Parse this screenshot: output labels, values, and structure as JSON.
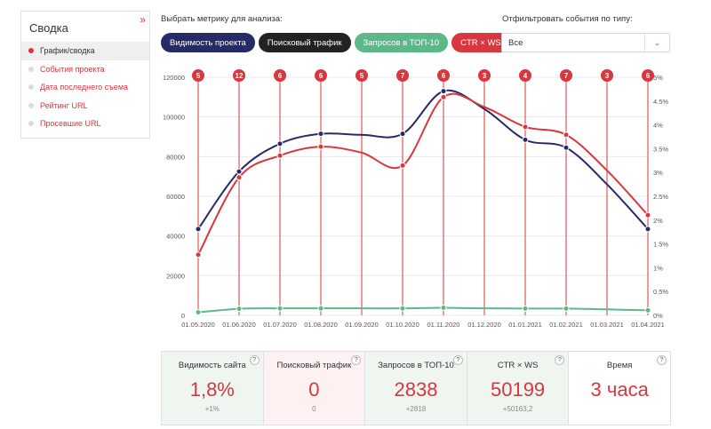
{
  "sidebar": {
    "title": "Сводка",
    "collapse_icon": "»",
    "items": [
      {
        "label": "График/сводка",
        "active": true
      },
      {
        "label": "События проекта",
        "active": false
      },
      {
        "label": "Дата последнего съема",
        "active": false
      },
      {
        "label": "Рейтинг URL",
        "active": false
      },
      {
        "label": "Просевшие URL",
        "active": false
      }
    ]
  },
  "controls": {
    "metric_label": "Выбрать метрику для анализа:",
    "filter_label": "Отфильтровать события по типу:",
    "help_icon": "?",
    "pills": [
      {
        "label": "Видимость проекта",
        "color": "#262a66"
      },
      {
        "label": "Поисковый трафик",
        "color": "#222222"
      },
      {
        "label": "Запросов в ТОП-10",
        "color": "#5cb888"
      },
      {
        "label": "CTR × WS",
        "color": "#d9363e"
      }
    ],
    "select_value": "Все",
    "select_arrow": "⌄"
  },
  "chart_data": {
    "type": "line",
    "x": [
      "01.05.2020",
      "01.06.2020",
      "01.07.2020",
      "01.08.2020",
      "01.09.2020",
      "01.10.2020",
      "01.11.2020",
      "01.12.2020",
      "01.01.2021",
      "01.02.2021",
      "01.03.2021",
      "01.04.2021"
    ],
    "y_left_ticks": [
      "0",
      "20000",
      "40000",
      "60000",
      "80000",
      "100000",
      "120000"
    ],
    "y_left_range": [
      0,
      120000
    ],
    "y_right_ticks": [
      "0%",
      "0.5%",
      "1%",
      "1.5%",
      "2%",
      "2.5%",
      "3%",
      "3.5%",
      "4%",
      "4.5%",
      "5%"
    ],
    "y_right_range": [
      0,
      5
    ],
    "events": [
      "5",
      "12",
      "6",
      "6",
      "5",
      "7",
      "6",
      "3",
      "4",
      "7",
      "3",
      "6"
    ],
    "series": [
      {
        "axis": "left",
        "color": "#262a66",
        "markers": [
          0,
          1,
          2,
          3,
          5,
          6,
          8,
          9,
          11
        ],
        "values": [
          43500,
          72500,
          86500,
          91500,
          91000,
          91500,
          113000,
          104000,
          88500,
          84500,
          66000,
          43500
        ]
      },
      {
        "axis": "left",
        "color": "#d9363e",
        "markers": [
          0,
          1,
          2,
          3,
          5,
          6,
          8,
          9,
          11
        ],
        "values": [
          30500,
          69500,
          80500,
          85000,
          82000,
          75500,
          110000,
          105000,
          95000,
          91000,
          73000,
          50500
        ]
      },
      {
        "axis": "left",
        "color": "#5cb888",
        "markers": [
          0,
          1,
          2,
          3,
          5,
          6,
          8,
          9,
          11
        ],
        "values": [
          1500,
          3300,
          3500,
          3500,
          3500,
          3500,
          3800,
          3500,
          3400,
          3400,
          3000,
          2500
        ]
      }
    ],
    "grid": true
  },
  "stats": [
    {
      "label": "Видимость сайта",
      "value": "1,8%",
      "delta": "+1%",
      "bg": "#eef6ef"
    },
    {
      "label": "Поисковый трафик",
      "value": "0",
      "delta": "0",
      "bg": "#fdf1f1"
    },
    {
      "label": "Запросов в ТОП-10",
      "value": "2838",
      "delta": "+2818",
      "bg": "#eef6ef"
    },
    {
      "label": "CTR × WS",
      "value": "50199",
      "delta": "+50163,2",
      "bg": "#eef6ef"
    },
    {
      "label": "Время",
      "value": "3 часа",
      "delta": "",
      "bg": "#ffffff"
    }
  ]
}
